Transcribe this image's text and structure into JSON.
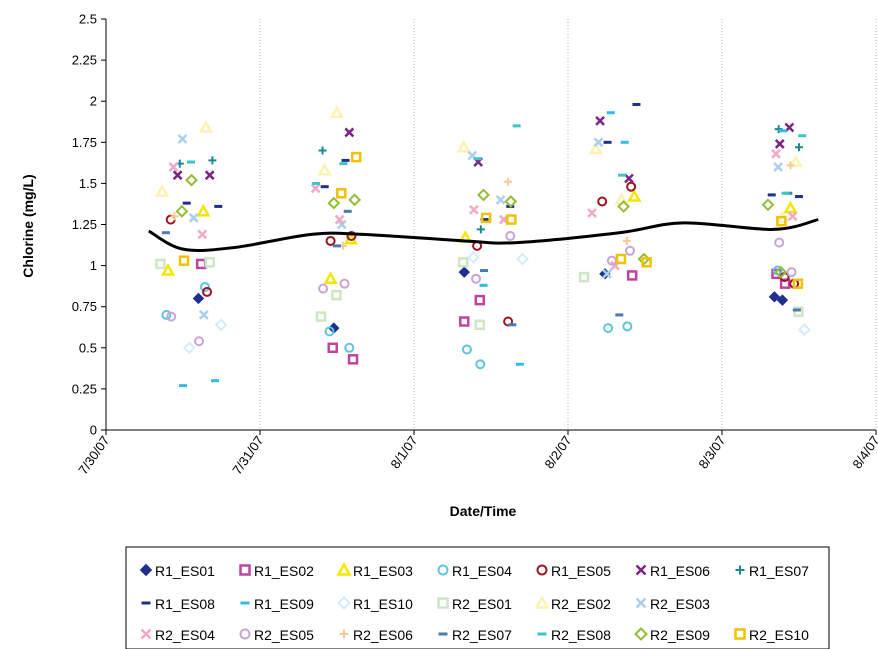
{
  "chart_data": {
    "type": "scatter",
    "title": "",
    "xlabel": "Date/Time",
    "ylabel": "Chlorine (mg/L)",
    "ylim": [
      0,
      2.5
    ],
    "y_ticks": [
      "0",
      "0.25",
      "0.5",
      "0.75",
      "1",
      "1.25",
      "1.5",
      "1.75",
      "2",
      "2.25",
      "2.5"
    ],
    "x_ticks": [
      "7/30/07",
      "7/31/07",
      "8/1/07",
      "8/2/07",
      "8/3/07",
      "8/4/07"
    ],
    "xlim": [
      "7/30/07",
      "8/4/07"
    ],
    "grid": "dotted vertical gridlines at each date",
    "legend": "bottom, boxed",
    "colors": {
      "navy": "#1f2f8f",
      "magenta": "#c0449f",
      "yellow": "#f5e600",
      "cyan": "#5fc4e0",
      "darkred": "#9c1620",
      "purple": "#7a2585",
      "teal": "#1a8a8e",
      "blue": "#3a5fa8",
      "skyblue": "#33bbe8",
      "paleblue": "#d6ecfa",
      "palegreen": "#cfe6c4",
      "paleyellow": "#fbf3b2",
      "lightblue": "#a9cfee",
      "pink": "#f0a9c7",
      "lavender": "#c9a4d8",
      "peach": "#f7c99a",
      "steel": "#4a79b4",
      "aqua": "#38c6c8",
      "green": "#93bd36",
      "gold": "#f2c200"
    },
    "series": [
      {
        "name": "R1_ES01",
        "marker": "diamond",
        "color": "#1f2f8f",
        "filled": true,
        "points": [
          [
            "7/30/07 14:24",
            0.8
          ],
          [
            "7/31/07 11:30",
            0.62
          ],
          [
            "8/1/07 7:50",
            0.96
          ],
          [
            "8/2/07 5:45",
            0.95
          ],
          [
            "8/3/07 8:10",
            0.81
          ],
          [
            "8/3/07 9:25",
            0.79
          ]
        ]
      },
      {
        "name": "R1_ES02",
        "marker": "square",
        "color": "#c0449f",
        "filled": false,
        "points": [
          [
            "7/30/07 14:50",
            1.01
          ],
          [
            "7/31/07 11:20",
            0.5
          ],
          [
            "7/31/07 14:30",
            0.43
          ],
          [
            "8/1/07 7:50",
            0.66
          ],
          [
            "8/1/07 10:15",
            0.79
          ],
          [
            "8/2/07 10:00",
            0.94
          ],
          [
            "8/3/07 8:30",
            0.95
          ],
          [
            "8/3/07 9:50",
            0.89
          ]
        ]
      },
      {
        "name": "R1_ES03",
        "marker": "triangle",
        "color": "#f5e600",
        "filled": false,
        "points": [
          [
            "7/30/07 9:40",
            0.97
          ],
          [
            "7/30/07 15:10",
            1.33
          ],
          [
            "7/31/07 11:00",
            0.92
          ],
          [
            "7/31/07 14:10",
            1.16
          ],
          [
            "8/1/07 8:00",
            1.17
          ],
          [
            "8/2/07 10:20",
            1.42
          ],
          [
            "8/3/07 10:40",
            1.35
          ]
        ]
      },
      {
        "name": "R1_ES04",
        "marker": "circle",
        "color": "#5fc4e0",
        "filled": false,
        "points": [
          [
            "7/30/07 9:25",
            0.7
          ],
          [
            "7/30/07 15:25",
            0.87
          ],
          [
            "7/31/07 10:50",
            0.6
          ],
          [
            "7/31/07 13:55",
            0.5
          ],
          [
            "8/1/07 8:15",
            0.49
          ],
          [
            "8/1/07 10:20",
            0.4
          ],
          [
            "8/2/07 6:15",
            0.62
          ],
          [
            "8/2/07 9:15",
            0.63
          ],
          [
            "8/3/07 8:40",
            0.97
          ]
        ]
      },
      {
        "name": "R1_ES05",
        "marker": "circle",
        "color": "#9c1620",
        "filled": false,
        "points": [
          [
            "7/30/07 10:05",
            1.28
          ],
          [
            "7/30/07 15:45",
            0.84
          ],
          [
            "7/31/07 11:00",
            1.15
          ],
          [
            "7/31/07 14:15",
            1.18
          ],
          [
            "8/1/07 9:50",
            1.12
          ],
          [
            "8/1/07 14:40",
            0.66
          ],
          [
            "8/2/07 5:20",
            1.39
          ],
          [
            "8/2/07 9:50",
            1.48
          ],
          [
            "8/3/07 9:45",
            0.93
          ],
          [
            "8/3/07 11:15",
            0.89
          ]
        ]
      },
      {
        "name": "R1_ES06",
        "marker": "x",
        "color": "#7a2585",
        "filled": false,
        "points": [
          [
            "7/30/07 11:10",
            1.55
          ],
          [
            "7/30/07 16:10",
            1.55
          ],
          [
            "7/31/07 13:55",
            1.81
          ],
          [
            "8/1/07 10:00",
            1.63
          ],
          [
            "8/2/07 5:00",
            1.88
          ],
          [
            "8/2/07 9:30",
            1.53
          ],
          [
            "8/3/07 9:00",
            1.74
          ],
          [
            "8/3/07 10:30",
            1.84
          ]
        ]
      },
      {
        "name": "R1_ES07",
        "marker": "plus",
        "color": "#1a8a8e",
        "filled": false,
        "points": [
          [
            "7/30/07 11:30",
            1.62
          ],
          [
            "7/30/07 16:35",
            1.64
          ],
          [
            "7/31/07 9:45",
            1.7
          ],
          [
            "8/1/07 10:25",
            1.22
          ],
          [
            "8/3/07 8:50",
            1.83
          ],
          [
            "8/3/07 12:00",
            1.72
          ]
        ]
      },
      {
        "name": "R1_ES08",
        "marker": "dash",
        "color": "#1f2f8f",
        "filled": false,
        "points": [
          [
            "7/30/07 12:35",
            1.38
          ],
          [
            "7/30/07 17:30",
            1.36
          ],
          [
            "7/31/07 10:05",
            1.48
          ],
          [
            "7/31/07 13:20",
            1.64
          ],
          [
            "8/1/07 11:00",
            1.28
          ],
          [
            "8/1/07 15:00",
            1.36
          ],
          [
            "8/2/07 6:10",
            1.75
          ],
          [
            "8/2/07 10:40",
            1.98
          ],
          [
            "8/3/07 7:45",
            1.43
          ],
          [
            "8/3/07 12:00",
            1.42
          ]
        ]
      },
      {
        "name": "R1_ES09",
        "marker": "dash",
        "color": "#33bbe8",
        "filled": false,
        "points": [
          [
            "7/30/07 12:00",
            0.27
          ],
          [
            "7/30/07 17:00",
            0.3
          ],
          [
            "8/1/07 10:50",
            0.88
          ],
          [
            "8/1/07 16:30",
            0.4
          ],
          [
            "8/2/07 8:50",
            1.75
          ],
          [
            "8/2/07 6:40",
            1.93
          ],
          [
            "8/3/07 9:30",
            1.82
          ]
        ]
      },
      {
        "name": "R1_ES10",
        "marker": "diamond",
        "color": "#d6ecfa",
        "filled": false,
        "points": [
          [
            "7/30/07 13:00",
            0.5
          ],
          [
            "7/30/07 17:55",
            0.64
          ],
          [
            "8/1/07 9:15",
            1.05
          ],
          [
            "8/1/07 16:55",
            1.04
          ],
          [
            "8/3/07 12:50",
            0.61
          ]
        ]
      },
      {
        "name": "R2_ES01",
        "marker": "square",
        "color": "#cfe6c4",
        "filled": false,
        "points": [
          [
            "7/30/07 8:30",
            1.01
          ],
          [
            "7/30/07 16:10",
            1.02
          ],
          [
            "7/31/07 9:30",
            0.69
          ],
          [
            "7/31/07 11:55",
            0.82
          ],
          [
            "8/1/07 7:40",
            1.02
          ],
          [
            "8/1/07 10:15",
            0.64
          ],
          [
            "8/2/07 2:30",
            0.93
          ],
          [
            "8/3/07 11:55",
            0.72
          ]
        ]
      },
      {
        "name": "R2_ES02",
        "marker": "triangle",
        "color": "#fbf3b2",
        "filled": false,
        "points": [
          [
            "7/30/07 8:45",
            1.45
          ],
          [
            "7/30/07 15:35",
            1.84
          ],
          [
            "7/31/07 12:00",
            1.93
          ],
          [
            "7/31/07 10:05",
            1.58
          ],
          [
            "8/1/07 7:45",
            1.72
          ],
          [
            "8/2/07 4:20",
            1.71
          ],
          [
            "8/2/07 8:20",
            1.4
          ],
          [
            "8/3/07 9:25",
            1.29
          ],
          [
            "8/3/07 11:30",
            1.63
          ]
        ]
      },
      {
        "name": "R2_ES03",
        "marker": "x",
        "color": "#a9cfee",
        "filled": false,
        "points": [
          [
            "7/30/07 11:55",
            1.77
          ],
          [
            "7/30/07 13:40",
            1.29
          ],
          [
            "7/30/07 15:15",
            0.7
          ],
          [
            "7/31/07 12:45",
            1.25
          ],
          [
            "8/1/07 9:05",
            1.67
          ],
          [
            "8/1/07 13:30",
            1.4
          ],
          [
            "8/2/07 4:45",
            1.75
          ],
          [
            "8/2/07 6:05",
            0.95
          ],
          [
            "8/3/07 8:45",
            1.6
          ]
        ]
      },
      {
        "name": "R2_ES04",
        "marker": "x",
        "color": "#f0a9c7",
        "filled": false,
        "points": [
          [
            "7/30/07 10:30",
            1.6
          ],
          [
            "7/30/07 15:00",
            1.19
          ],
          [
            "7/31/07 8:40",
            1.47
          ],
          [
            "7/31/07 12:25",
            1.28
          ],
          [
            "8/1/07 9:20",
            1.34
          ],
          [
            "8/1/07 14:00",
            1.28
          ],
          [
            "8/2/07 3:45",
            1.32
          ],
          [
            "8/2/07 7:20",
            1.0
          ],
          [
            "8/3/07 8:25",
            1.68
          ],
          [
            "8/3/07 11:00",
            1.3
          ]
        ]
      },
      {
        "name": "R2_ES05",
        "marker": "circle",
        "color": "#c9a4d8",
        "filled": false,
        "points": [
          [
            "7/30/07 10:10",
            0.69
          ],
          [
            "7/30/07 14:30",
            0.54
          ],
          [
            "7/31/07 9:50",
            0.86
          ],
          [
            "7/31/07 13:10",
            0.89
          ],
          [
            "8/1/07 9:40",
            0.92
          ],
          [
            "8/1/07 15:00",
            1.18
          ],
          [
            "8/2/07 6:50",
            1.03
          ],
          [
            "8/2/07 9:40",
            1.09
          ],
          [
            "8/3/07 8:55",
            1.14
          ],
          [
            "8/3/07 10:50",
            0.96
          ]
        ]
      },
      {
        "name": "R2_ES06",
        "marker": "plus",
        "color": "#f7c99a",
        "filled": false,
        "points": [
          [
            "7/30/07 10:40",
            1.3
          ],
          [
            "7/31/07 12:55",
            1.12
          ],
          [
            "8/1/07 14:40",
            1.51
          ],
          [
            "8/2/07 9:10",
            1.15
          ],
          [
            "8/3/07 10:40",
            1.61
          ]
        ]
      },
      {
        "name": "R2_ES07",
        "marker": "dash",
        "color": "#4a79b4",
        "filled": false,
        "points": [
          [
            "7/30/07 9:20",
            1.2
          ],
          [
            "7/31/07 12:00",
            1.12
          ],
          [
            "7/31/07 13:40",
            1.33
          ],
          [
            "8/1/07 10:55",
            0.97
          ],
          [
            "8/1/07 15:20",
            0.64
          ],
          [
            "8/2/07 8:00",
            0.7
          ],
          [
            "8/3/07 10:20",
            1.44
          ],
          [
            "8/3/07 11:40",
            0.73
          ]
        ]
      },
      {
        "name": "R2_ES08",
        "marker": "dash",
        "color": "#38c6c8",
        "filled": false,
        "points": [
          [
            "7/30/07 13:15",
            1.63
          ],
          [
            "7/31/07 8:45",
            1.5
          ],
          [
            "7/31/07 13:00",
            1.62
          ],
          [
            "8/1/07 9:55",
            1.65
          ],
          [
            "8/1/07 16:00",
            1.85
          ],
          [
            "8/2/07 8:25",
            1.55
          ],
          [
            "8/3/07 9:55",
            1.44
          ],
          [
            "8/3/07 12:30",
            1.79
          ]
        ]
      },
      {
        "name": "R2_ES09",
        "marker": "diamond",
        "color": "#93bd36",
        "filled": false,
        "points": [
          [
            "7/30/07 11:50",
            1.33
          ],
          [
            "7/30/07 13:20",
            1.52
          ],
          [
            "7/31/07 11:30",
            1.38
          ],
          [
            "7/31/07 14:45",
            1.4
          ],
          [
            "8/1/07 10:50",
            1.43
          ],
          [
            "8/1/07 15:05",
            1.39
          ],
          [
            "8/2/07 8:40",
            1.36
          ],
          [
            "8/2/07 11:50",
            1.04
          ],
          [
            "8/3/07 7:10",
            1.37
          ],
          [
            "8/3/07 9:10",
            0.96
          ]
        ]
      },
      {
        "name": "R2_ES10",
        "marker": "square",
        "color": "#f2c200",
        "filled": false,
        "points": [
          [
            "7/30/07 12:10",
            1.03
          ],
          [
            "7/31/07 12:40",
            1.44
          ],
          [
            "7/31/07 15:00",
            1.66
          ],
          [
            "8/1/07 11:15",
            1.29
          ],
          [
            "8/1/07 15:10",
            1.28
          ],
          [
            "8/2/07 8:15",
            1.04
          ],
          [
            "8/2/07 12:15",
            1.02
          ],
          [
            "8/3/07 9:15",
            1.27
          ],
          [
            "8/3/07 11:50",
            0.89
          ]
        ]
      }
    ],
    "trendline": {
      "style": "smooth black line",
      "points": [
        [
          "7/30/07 6:40",
          1.21
        ],
        [
          "7/30/07 12:00",
          1.1
        ],
        [
          "7/30/07 20:00",
          1.11
        ],
        [
          "7/31/07 8:00",
          1.19
        ],
        [
          "7/31/07 16:00",
          1.19
        ],
        [
          "8/1/07 8:00",
          1.15
        ],
        [
          "8/1/07 16:00",
          1.14
        ],
        [
          "8/2/07 8:00",
          1.2
        ],
        [
          "8/2/07 18:00",
          1.26
        ],
        [
          "8/3/07 8:00",
          1.22
        ],
        [
          "8/3/07 15:00",
          1.28
        ]
      ]
    }
  }
}
